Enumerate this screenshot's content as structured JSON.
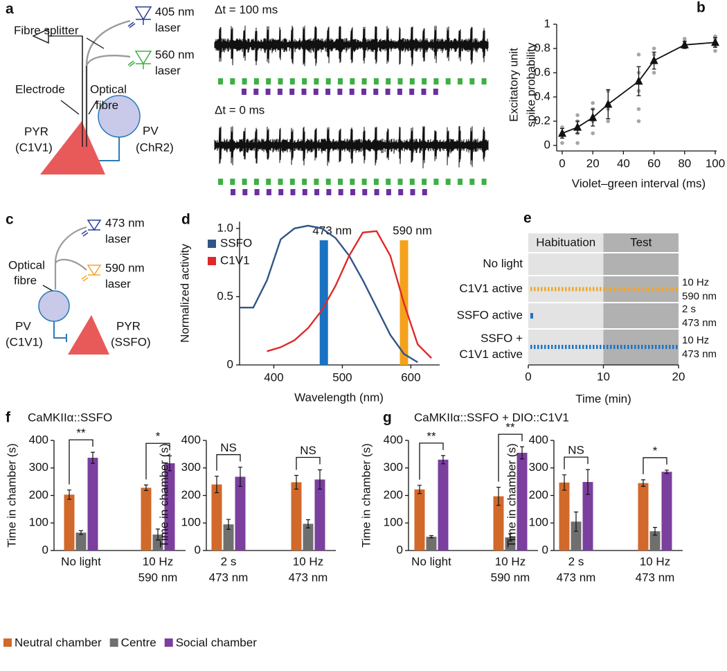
{
  "panel_labels": [
    "a",
    "b",
    "c",
    "d",
    "e",
    "f",
    "g"
  ],
  "panel_a": {
    "splitter": "Fibre splitter",
    "laser_violet": [
      "405 nm",
      "laser"
    ],
    "laser_green": [
      "560 nm",
      "laser"
    ],
    "electrode": "Electrode",
    "fibre": [
      "Optical",
      "fibre"
    ],
    "pyr": [
      "PYR",
      "(C1V1)"
    ],
    "pv": [
      "PV",
      "(ChR2)"
    ],
    "traces": [
      "Δt = 100 ms",
      "Δt = 0 ms"
    ]
  },
  "panel_c": {
    "laser_blue": [
      "473 nm",
      "laser"
    ],
    "laser_orange": [
      "590 nm",
      "laser"
    ],
    "fibre": [
      "Optical",
      "fibre"
    ],
    "pv": [
      "PV",
      "(C1V1)"
    ],
    "pyr": [
      "PYR",
      "(SSFO)"
    ]
  },
  "panel_f_title": "CaMKIIα::SSFO",
  "panel_g_title": "CaMKIIα::SSFO + DIO::C1V1",
  "legend": [
    {
      "name": "Neutral chamber",
      "color": "#d0692a"
    },
    {
      "name": "Centre",
      "color": "#6f6f6f"
    },
    {
      "name": "Social chamber",
      "color": "#7b3f9e"
    }
  ],
  "chart_data": [
    {
      "type": "line",
      "x_label": "Violet–green interval (ms)",
      "y_label": [
        "Excitatory unit",
        "spike probability"
      ],
      "xlim": [
        0,
        100
      ],
      "xticks": [
        0,
        20,
        40,
        60,
        80,
        100
      ],
      "ylim": [
        0,
        1
      ],
      "yticks": [
        0,
        0.2,
        0.4,
        0.6,
        0.8,
        1
      ],
      "series": [
        {
          "color": "#111111",
          "marker": "triangle",
          "x": [
            0,
            10,
            20,
            30,
            50,
            60,
            80,
            100
          ],
          "values": [
            0.1,
            0.15,
            0.23,
            0.34,
            0.53,
            0.7,
            0.83,
            0.85
          ],
          "errors": [
            0.04,
            0.05,
            0.07,
            0.12,
            0.12,
            0.07,
            0.03,
            0.04
          ]
        }
      ],
      "points": {
        "color": "#a6a6a6",
        "x": [
          0,
          0,
          0,
          10,
          10,
          10,
          10,
          20,
          20,
          20,
          20,
          30,
          30,
          30,
          50,
          50,
          50,
          50,
          50,
          60,
          60,
          60,
          80,
          80,
          80,
          100,
          100,
          100,
          100
        ],
        "values": [
          0.02,
          0.08,
          0.15,
          0.02,
          0.1,
          0.2,
          0.25,
          0.1,
          0.2,
          0.3,
          0.35,
          0.2,
          0.3,
          0.45,
          0.2,
          0.3,
          0.45,
          0.6,
          0.75,
          0.6,
          0.75,
          0.8,
          0.82,
          0.85,
          0.88,
          0.78,
          0.82,
          0.88,
          0.9
        ]
      }
    },
    {
      "type": "line",
      "x_label": "Wavelength (nm)",
      "y_label": "Normalized activity",
      "xlim": [
        350,
        640
      ],
      "xticks": [
        400,
        500,
        600
      ],
      "ylim": [
        0,
        1.05
      ],
      "yticks": [
        0,
        0.5,
        {
          "value": 1,
          "label": "1.0"
        }
      ],
      "bands": [
        {
          "x": 473,
          "label": "473 nm",
          "color": "#1a72c2"
        },
        {
          "x": 590,
          "label": "590 nm",
          "color": "#f4a21c"
        }
      ],
      "series": [
        {
          "name": "SSFO",
          "color": "#2f5587",
          "x": [
            350,
            370,
            390,
            410,
            430,
            450,
            470,
            490,
            510,
            530,
            550,
            570,
            590,
            610
          ],
          "values": [
            0.42,
            0.42,
            0.62,
            0.92,
            1.0,
            1.02,
            1.0,
            0.93,
            0.8,
            0.62,
            0.42,
            0.22,
            0.08,
            0.02
          ]
        },
        {
          "name": "C1V1",
          "color": "#e02828",
          "x": [
            390,
            410,
            430,
            450,
            470,
            490,
            510,
            530,
            550,
            570,
            590,
            610,
            630
          ],
          "values": [
            0.1,
            0.13,
            0.18,
            0.27,
            0.4,
            0.58,
            0.8,
            0.97,
            0.98,
            0.8,
            0.45,
            0.15,
            0.05
          ]
        }
      ]
    },
    {
      "type": "timeline",
      "x_label": "Time (min)",
      "xlim": [
        0,
        20
      ],
      "xticks": [
        0,
        10,
        20
      ],
      "phases": [
        {
          "label": "Habituation",
          "start": 0,
          "color": "#e3e3e3"
        },
        {
          "label": "Test",
          "start": 10,
          "color": "#b1b1b1"
        }
      ],
      "rows": [
        {
          "label": [
            "No light"
          ]
        },
        {
          "label": [
            "C1V1 active"
          ],
          "note": [
            "10 Hz",
            "590 nm"
          ],
          "pattern": "train",
          "color": "#f2a52a"
        },
        {
          "label": [
            "SSFO active"
          ],
          "note": [
            "2 s",
            "473 nm"
          ],
          "pattern": "pulse",
          "color": "#1f74c2"
        },
        {
          "label": [
            "SSFO +",
            "C1V1 active"
          ],
          "note": [
            "10 Hz",
            "473 nm"
          ],
          "pattern": "train",
          "color": "#1f74c2"
        }
      ]
    },
    {
      "type": "bar",
      "y_label": "Time in chamber (s)",
      "categories": [
        [
          "No light"
        ],
        [
          "10 Hz",
          "590 nm"
        ]
      ],
      "ylim": [
        0,
        400
      ],
      "yticks": [
        0,
        100,
        200,
        300,
        400
      ],
      "series": [
        {
          "color": "#d0692a",
          "values": [
            203,
            228
          ],
          "errors": [
            17,
            10
          ]
        },
        {
          "color": "#6f6f6f",
          "values": [
            65,
            58
          ],
          "errors": [
            7,
            20
          ]
        },
        {
          "color": "#7b3f9e",
          "values": [
            337,
            317
          ],
          "errors": [
            20,
            27
          ]
        }
      ],
      "significance": [
        "**",
        "*"
      ]
    },
    {
      "type": "bar",
      "y_label": "Time in chamber (s)",
      "categories": [
        [
          "2 s",
          "473 nm"
        ],
        [
          "10 Hz",
          "473 nm"
        ]
      ],
      "ylim": [
        0,
        400
      ],
      "yticks": [
        0,
        100,
        200,
        300,
        400
      ],
      "series": [
        {
          "color": "#d0692a",
          "values": [
            240,
            248
          ],
          "errors": [
            30,
            25
          ]
        },
        {
          "color": "#6f6f6f",
          "values": [
            95,
            97
          ],
          "errors": [
            18,
            15
          ]
        },
        {
          "color": "#7b3f9e",
          "values": [
            268,
            258
          ],
          "errors": [
            35,
            35
          ]
        }
      ],
      "significance": [
        "NS",
        "NS"
      ]
    },
    {
      "type": "bar",
      "y_label": "Time in chamber (s)",
      "categories": [
        [
          "No light"
        ],
        [
          "10 Hz",
          "590 nm"
        ]
      ],
      "ylim": [
        0,
        400
      ],
      "yticks": [
        0,
        100,
        200,
        300,
        400
      ],
      "series": [
        {
          "color": "#d0692a",
          "values": [
            222,
            197
          ],
          "errors": [
            15,
            33
          ]
        },
        {
          "color": "#6f6f6f",
          "values": [
            50,
            48
          ],
          "errors": [
            4,
            13
          ]
        },
        {
          "color": "#7b3f9e",
          "values": [
            330,
            355
          ],
          "errors": [
            15,
            22
          ]
        }
      ],
      "significance": [
        "**",
        "**"
      ]
    },
    {
      "type": "bar",
      "y_label": "Time in chamber (s)",
      "categories": [
        [
          "2 s",
          "473 nm"
        ],
        [
          "10 Hz",
          "473 nm"
        ]
      ],
      "ylim": [
        0,
        400
      ],
      "yticks": [
        0,
        100,
        200,
        300,
        400
      ],
      "series": [
        {
          "color": "#d0692a",
          "values": [
            247,
            245
          ],
          "errors": [
            28,
            12
          ]
        },
        {
          "color": "#6f6f6f",
          "values": [
            105,
            70
          ],
          "errors": [
            35,
            14
          ]
        },
        {
          "color": "#7b3f9e",
          "values": [
            249,
            286
          ],
          "errors": [
            45,
            6
          ]
        }
      ],
      "significance": [
        "NS",
        "*"
      ]
    }
  ]
}
